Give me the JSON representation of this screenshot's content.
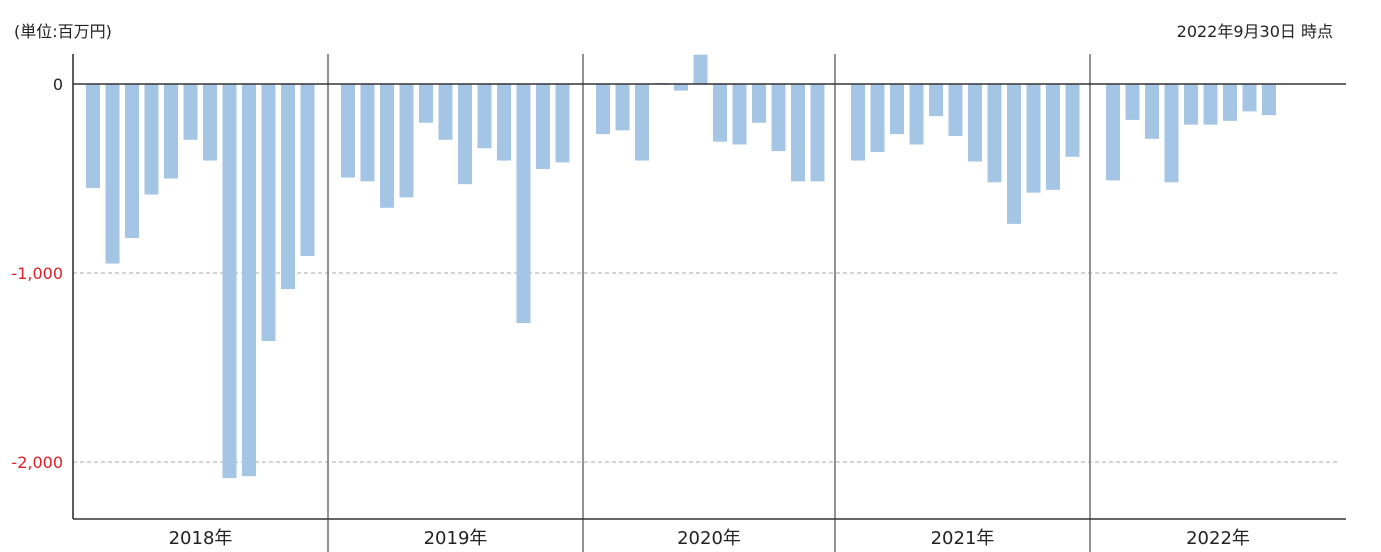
{
  "header": {
    "unit_label": "(単位:百万円)",
    "as_of_label": "2022年9月30日 時点"
  },
  "colors": {
    "bar": "#a4c5e4",
    "axis": "#333333",
    "grid": "#bbbbbb",
    "zero_label": "#222222",
    "negative_label": "#e0202a",
    "year_divider": "#777777"
  },
  "chart_data": {
    "type": "bar",
    "title": "",
    "xlabel": "",
    "ylabel": "",
    "ylim": [
      -2300,
      150
    ],
    "grid": true,
    "yticks": [
      0,
      -1000,
      -2000
    ],
    "ytick_labels": [
      "0",
      "-1,000",
      "-2,000"
    ],
    "groups": [
      {
        "label": "2018年",
        "values": [
          -550,
          -950,
          -815,
          -585,
          -500,
          -295,
          -405,
          -2085,
          -2075,
          -1360,
          -1085,
          -910
        ]
      },
      {
        "label": "2019年",
        "values": [
          -495,
          -515,
          -655,
          -600,
          -205,
          -295,
          -530,
          -340,
          -405,
          -1265,
          -450,
          -415
        ]
      },
      {
        "label": "2020年",
        "values": [
          -265,
          -245,
          -405,
          5,
          -35,
          155,
          -305,
          -320,
          -205,
          -355,
          -515,
          -515
        ]
      },
      {
        "label": "2021年",
        "values": [
          -405,
          -360,
          -265,
          -320,
          -170,
          -275,
          -410,
          -520,
          -740,
          -575,
          -560,
          -385
        ]
      },
      {
        "label": "2022年",
        "values": [
          -510,
          -190,
          -290,
          -520,
          -215,
          -215,
          -195,
          -145,
          -165
        ]
      }
    ]
  }
}
